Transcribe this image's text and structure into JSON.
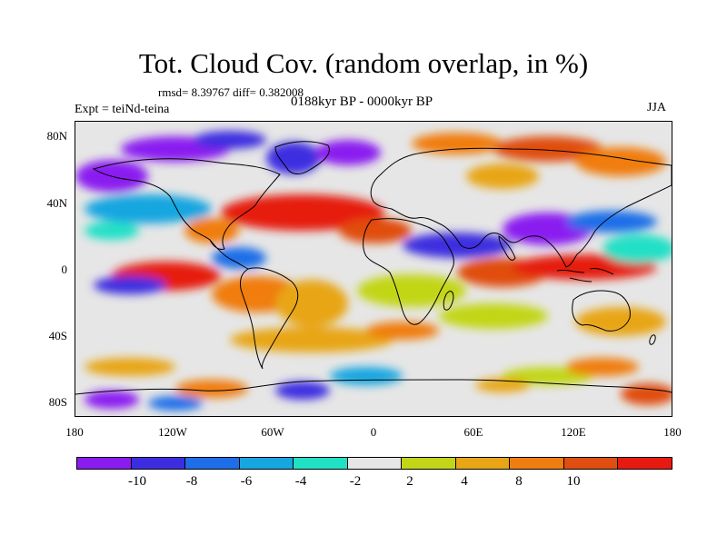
{
  "title": "Tot. Cloud Cov. (random overlap, in %)",
  "stats": "rmsd= 8.39767 diff= 0.382008",
  "experiment": "Expt = teiNd-teina",
  "period": "0188kyr BP - 0000kyr BP",
  "season": "JJA",
  "map": {
    "lat_labels": [
      "80N",
      "40N",
      "0",
      "40S",
      "80S"
    ],
    "lon_labels": [
      "180",
      "120W",
      "60W",
      "0",
      "60E",
      "120E",
      "180"
    ],
    "background_color": "#e6e6e6"
  },
  "colorbar": {
    "colors": [
      "#8a1cf0",
      "#3c2ee0",
      "#1e6ee8",
      "#17a6e0",
      "#20e0c6",
      "#e6e6e6",
      "#c2d617",
      "#e8a616",
      "#f07d10",
      "#e04e10",
      "#e61a10"
    ],
    "tick_labels": [
      "-10",
      "-8",
      "-6",
      "-4",
      "-2",
      "2",
      "4",
      "8",
      "10"
    ]
  }
}
